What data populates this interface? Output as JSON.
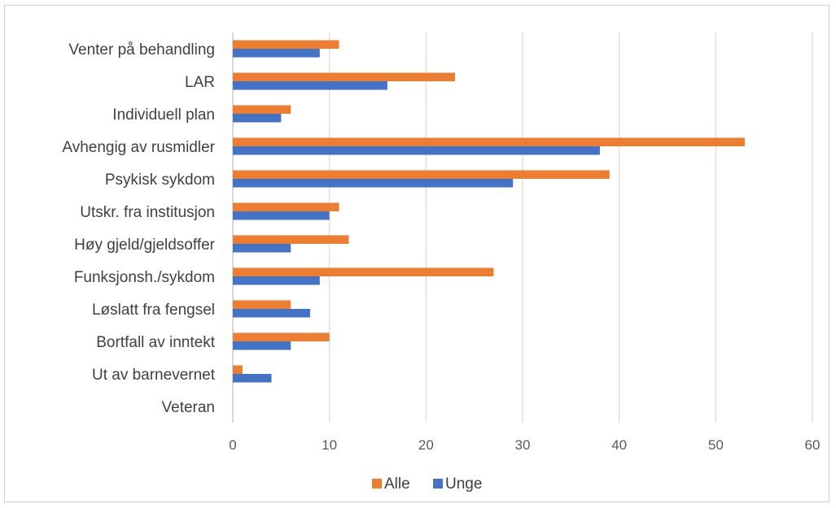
{
  "chart_data": {
    "type": "bar",
    "orientation": "horizontal",
    "categories": [
      "Venter på behandling",
      "LAR",
      "Individuell plan",
      "Avhengig av rusmidler",
      "Psykisk sykdom",
      "Utskr. fra institusjon",
      "Høy gjeld/gjeldsoffer",
      "Funksjonsh./sykdom",
      "Løslatt fra fengsel",
      "Bortfall av inntekt",
      "Ut av barnevernet",
      "Veteran"
    ],
    "series": [
      {
        "name": "Alle",
        "color": "#ED7D31",
        "values": [
          11,
          23,
          6,
          53,
          39,
          11,
          12,
          27,
          6,
          10,
          1,
          0
        ]
      },
      {
        "name": "Unge",
        "color": "#4472C4",
        "values": [
          9,
          16,
          5,
          38,
          29,
          10,
          6,
          9,
          8,
          6,
          4,
          0
        ]
      }
    ],
    "xlim": [
      0,
      60
    ],
    "xticks": [
      "0",
      "10",
      "20",
      "30",
      "40",
      "50",
      "60"
    ],
    "grid": "vertical",
    "legend": "bottom",
    "title": "",
    "xlabel": "",
    "ylabel": ""
  }
}
